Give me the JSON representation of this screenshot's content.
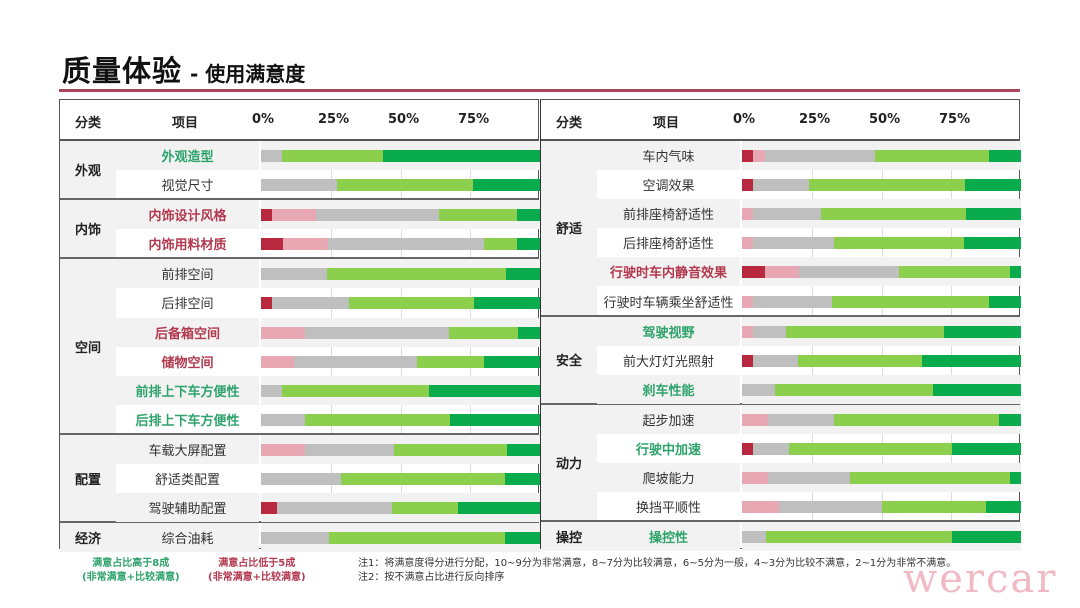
{
  "title": {
    "main": "质量体验",
    "sub": "- 使用满意度"
  },
  "colors": {
    "very_dissatisfied": "#b8283f",
    "dissatisfied": "#e8a8b3",
    "neutral": "#bfbfbf",
    "satisfied": "#8ccf4d",
    "very_satisfied": "#0aab4c",
    "label_green": "#2ea36b",
    "label_red": "#b2394f",
    "rule": "#a8475a"
  },
  "header": {
    "category": "分类",
    "item": "项目",
    "ticks": [
      "0%",
      "25%",
      "50%",
      "75%"
    ]
  },
  "chart_data": {
    "type": "bar",
    "stacked": true,
    "orientation": "horizontal",
    "title": "质量体验 - 使用满意度",
    "xlim": [
      0,
      100
    ],
    "xunit": "%",
    "tick_labels": [
      "0%",
      "25%",
      "50%",
      "75%"
    ],
    "series_names": [
      "非常不满意",
      "比较不满意",
      "一般",
      "比较满意",
      "非常满意"
    ],
    "panels": [
      {
        "groups": [
          {
            "category": "外观",
            "items": [
              {
                "label": "外观造型",
                "style": "green",
                "values": [
                  0,
                  0,
                  7.5,
                  36.4,
                  56.1
                ]
              },
              {
                "label": "视觉尺寸",
                "style": "normal",
                "values": [
                  0,
                  0,
                  27.3,
                  48.6,
                  24.1
                ]
              }
            ]
          },
          {
            "category": "内饰",
            "items": [
              {
                "label": "内饰设计风格",
                "style": "red",
                "values": [
                  4.0,
                  15.8,
                  43.9,
                  28.0,
                  8.3
                ]
              },
              {
                "label": "内饰用料材质",
                "style": "red",
                "values": [
                  7.9,
                  16.2,
                  55.8,
                  11.8,
                  8.3
                ]
              }
            ]
          },
          {
            "category": "空间",
            "items": [
              {
                "label": "前排空间",
                "style": "normal",
                "values": [
                  0,
                  0,
                  23.7,
                  64.1,
                  12.2
                ]
              },
              {
                "label": "后排空间",
                "style": "normal",
                "values": [
                  4.0,
                  0,
                  27.7,
                  44.6,
                  23.7
                ]
              },
              {
                "label": "后备箱空间",
                "style": "red",
                "values": [
                  0,
                  15.8,
                  51.5,
                  24.8,
                  7.9
                ]
              },
              {
                "label": "储物空间",
                "style": "red",
                "values": [
                  0,
                  11.9,
                  43.9,
                  24.1,
                  20.1
                ]
              },
              {
                "label": "前排上下车方便性",
                "style": "green",
                "values": [
                  0,
                  0,
                  7.6,
                  52.5,
                  39.9
                ]
              },
              {
                "label": "后排上下车方便性",
                "style": "green",
                "values": [
                  0,
                  0,
                  15.8,
                  51.8,
                  32.4
                ]
              }
            ]
          },
          {
            "category": "配置",
            "items": [
              {
                "label": "车载大屏配置",
                "style": "normal",
                "values": [
                  0,
                  15.8,
                  31.7,
                  40.6,
                  11.9
                ]
              },
              {
                "label": "舒适类配置",
                "style": "normal",
                "values": [
                  0,
                  0,
                  28.8,
                  58.6,
                  12.6
                ]
              },
              {
                "label": "驾驶辅助配置",
                "style": "normal",
                "values": [
                  5.8,
                  0,
                  41.0,
                  23.7,
                  29.5
                ]
              }
            ]
          },
          {
            "category": "经济",
            "items": [
              {
                "label": "综合油耗",
                "style": "normal",
                "values": [
                  0,
                  0,
                  24.5,
                  62.9,
                  12.6
                ]
              }
            ]
          }
        ]
      },
      {
        "groups": [
          {
            "category": "舒适",
            "items": [
              {
                "label": "车内气味",
                "style": "normal",
                "values": [
                  4.0,
                  4.3,
                  39.5,
                  40.7,
                  11.5
                ]
              },
              {
                "label": "空调效果",
                "style": "normal",
                "values": [
                  4.0,
                  0,
                  20.1,
                  55.8,
                  20.1
                ]
              },
              {
                "label": "前排座椅舒适性",
                "style": "normal",
                "values": [
                  0,
                  4.0,
                  24.4,
                  51.8,
                  19.8
                ]
              },
              {
                "label": "后排座椅舒适性",
                "style": "normal",
                "values": [
                  0,
                  4.0,
                  29.1,
                  46.4,
                  20.5
                ]
              },
              {
                "label": "行驶时车内静音效果",
                "style": "red",
                "values": [
                  8.3,
                  12.2,
                  35.6,
                  39.9,
                  4.0
                ]
              },
              {
                "label": "行驶时车辆乘坐舒适性",
                "style": "normal",
                "values": [
                  0,
                  4.0,
                  28.4,
                  56.1,
                  11.5
                ]
              }
            ]
          },
          {
            "category": "安全",
            "items": [
              {
                "label": "驾驶视野",
                "style": "green",
                "values": [
                  0,
                  4.0,
                  11.8,
                  56.5,
                  27.7
                ]
              },
              {
                "label": "前大灯灯光照射",
                "style": "normal",
                "values": [
                  4.0,
                  0,
                  16.1,
                  44.3,
                  35.6
                ]
              },
              {
                "label": "刹车性能",
                "style": "green",
                "values": [
                  0,
                  0,
                  11.9,
                  56.4,
                  31.7
                ]
              }
            ]
          },
          {
            "category": "动力",
            "items": [
              {
                "label": "起步加速",
                "style": "normal",
                "values": [
                  0,
                  9.4,
                  23.7,
                  59.0,
                  7.9
                ]
              },
              {
                "label": "行驶中加速",
                "style": "green",
                "values": [
                  4.0,
                  0,
                  12.9,
                  58.3,
                  24.8
                ]
              },
              {
                "label": "爬坡能力",
                "style": "normal",
                "values": [
                  0,
                  9.4,
                  29.4,
                  57.2,
                  4.0
                ]
              },
              {
                "label": "换挡平顺性",
                "style": "normal",
                "values": [
                  0,
                  13.3,
                  36.7,
                  37.4,
                  12.6
                ]
              }
            ]
          },
          {
            "category": "操控",
            "items": [
              {
                "label": "操控性",
                "style": "green",
                "values": [
                  0,
                  0,
                  8.6,
                  66.6,
                  24.8
                ]
              }
            ]
          }
        ]
      }
    ]
  },
  "legend": {
    "green_line1": "满意占比高于8成",
    "green_line2": "(非常满意+比较满意)",
    "red_line1": "满意占比低于5成",
    "red_line2": "(非常满意+比较满意)"
  },
  "notes": {
    "note1": "注1：将满意度得分进行分配，10~9分为非常满意，8~7分为比较满意，6~5分为一般，4~3分为比较不满意，2~1分为非常不满意。",
    "note2": "注2：按不满意占比进行反向排序"
  },
  "watermark": "wercar"
}
